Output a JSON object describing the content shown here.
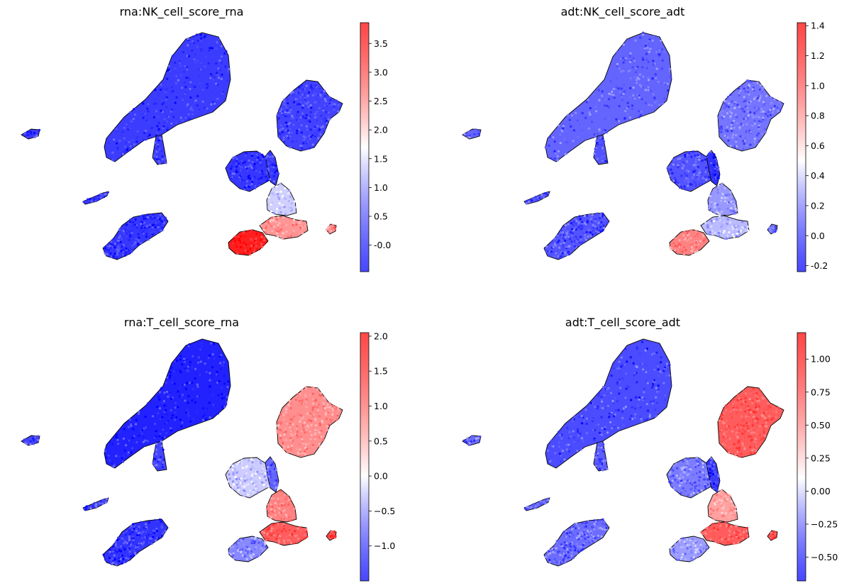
{
  "chart_data": [
    {
      "type": "scatter",
      "title": "rna:NK_cell_score_rna",
      "colorbar": {
        "min": -0.46,
        "max": 3.86,
        "center": 1.7,
        "ticks": [
          "-0.0",
          "0.5",
          "1.0",
          "1.5",
          "2.0",
          "2.5",
          "3.0",
          "3.5"
        ],
        "tick_values": [
          0.0,
          0.5,
          1.0,
          1.5,
          2.0,
          2.5,
          3.0,
          3.5
        ],
        "cmap": "bwr"
      },
      "cluster_values": [
        0.05,
        0.0,
        0.05,
        0.05,
        0.05,
        0.1,
        0.0,
        0.0,
        1.3,
        2.6,
        3.6,
        2.7
      ]
    },
    {
      "type": "scatter",
      "title": "adt:NK_cell_score_adt",
      "colorbar": {
        "min": -0.24,
        "max": 1.42,
        "center": 0.5,
        "ticks": [
          "-0.2",
          "0.0",
          "0.2",
          "0.4",
          "0.6",
          "0.8",
          "1.0",
          "1.2",
          "1.4"
        ],
        "tick_values": [
          -0.2,
          0.0,
          0.2,
          0.4,
          0.6,
          0.8,
          1.0,
          1.2,
          1.4
        ],
        "cmap": "bwr"
      },
      "cluster_values": [
        0.05,
        0.0,
        0.05,
        0.0,
        0.0,
        0.1,
        0.0,
        -0.1,
        0.2,
        0.3,
        0.95,
        0.1
      ]
    },
    {
      "type": "scatter",
      "title": "rna:T_cell_score_rna",
      "colorbar": {
        "min": -1.5,
        "max": 2.05,
        "center": 0.0,
        "ticks": [
          "−1.0",
          "−0.5",
          "0.0",
          "0.5",
          "1.0",
          "1.5",
          "2.0"
        ],
        "tick_values": [
          -1.0,
          -0.5,
          0.0,
          0.5,
          1.0,
          1.5,
          2.0
        ],
        "cmap": "bwr"
      },
      "cluster_values": [
        -1.3,
        -1.2,
        -1.1,
        -1.1,
        -1.1,
        0.9,
        -0.3,
        -0.9,
        1.0,
        1.3,
        -0.7,
        1.4
      ]
    },
    {
      "type": "scatter",
      "title": "adt:T_cell_score_adt",
      "colorbar": {
        "min": -0.68,
        "max": 1.2,
        "center": 0.1,
        "ticks": [
          "−0.50",
          "−0.25",
          "0.00",
          "0.25",
          "0.50",
          "0.75",
          "1.00"
        ],
        "tick_values": [
          -0.5,
          -0.25,
          0.0,
          0.25,
          0.5,
          0.75,
          1.0
        ],
        "cmap": "bwr"
      },
      "cluster_values": [
        -0.45,
        -0.35,
        -0.35,
        -0.4,
        -0.4,
        0.8,
        -0.3,
        -0.5,
        0.5,
        0.8,
        -0.2,
        0.85
      ]
    }
  ]
}
